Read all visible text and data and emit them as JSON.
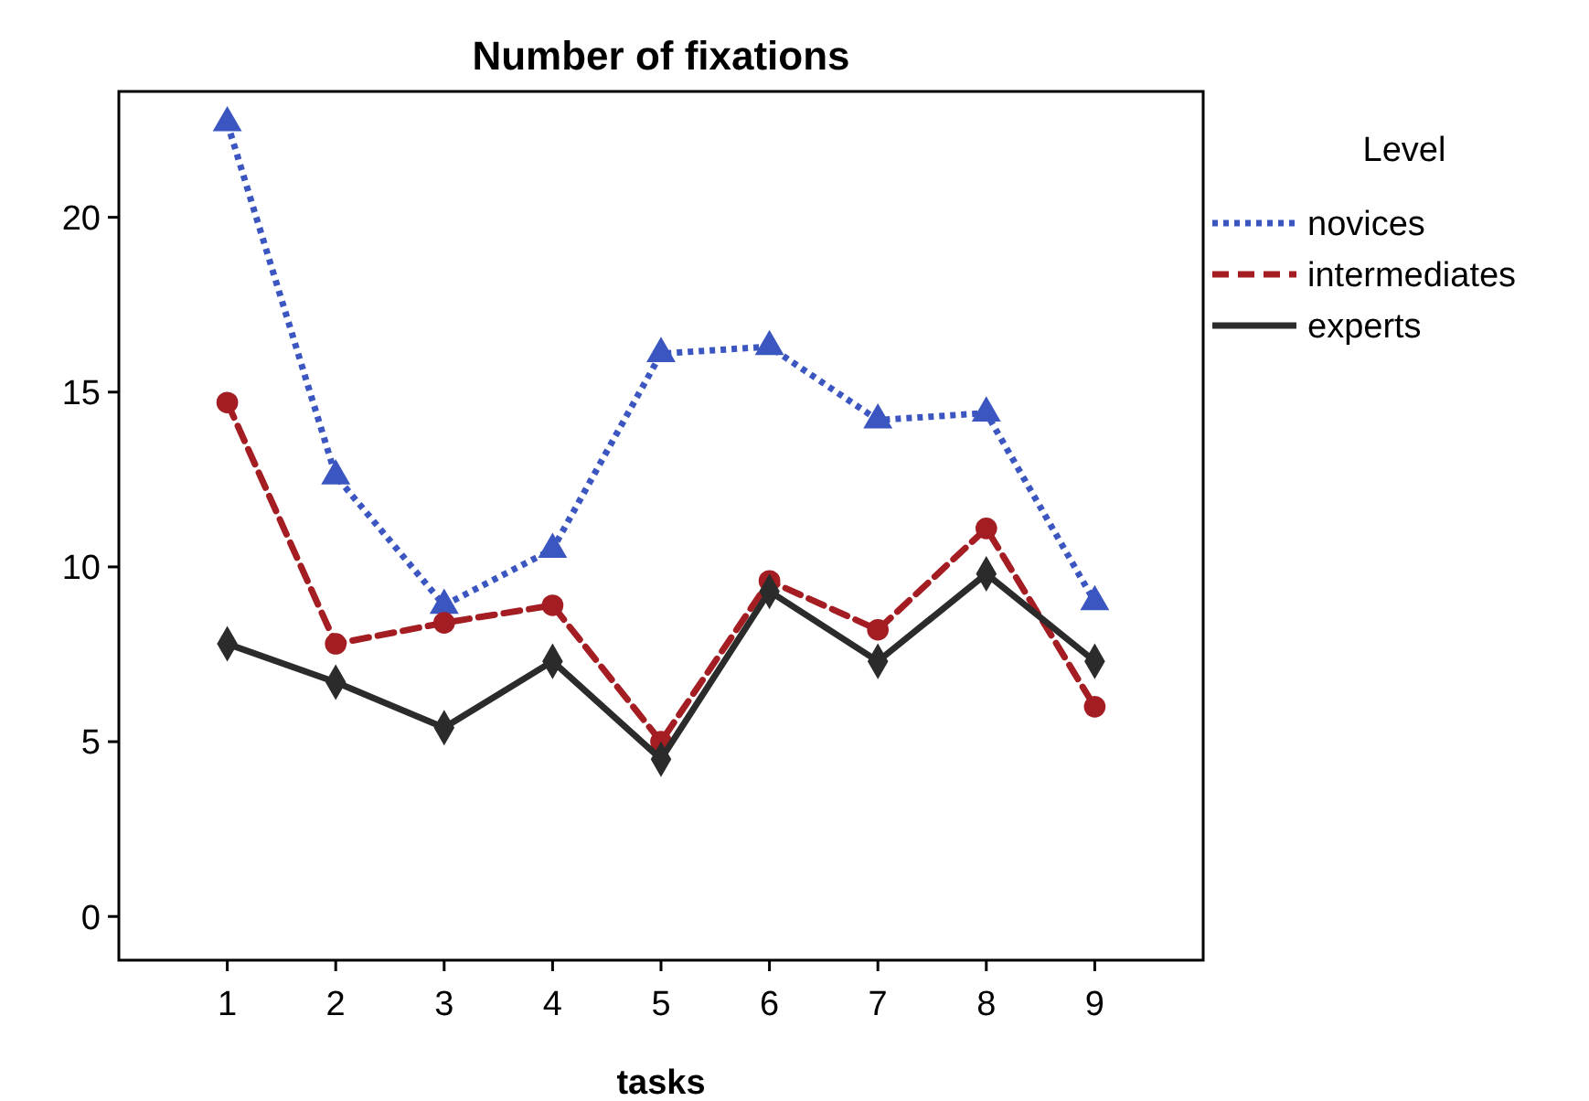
{
  "chart_data": {
    "type": "line",
    "title": "Number of fixations",
    "xlabel": "tasks",
    "legend_title": "Level",
    "x": [
      1,
      2,
      3,
      4,
      5,
      6,
      7,
      8,
      9
    ],
    "xlim": [
      0,
      10
    ],
    "xticks": [
      1,
      2,
      3,
      4,
      5,
      6,
      7,
      8,
      9
    ],
    "ylim": [
      -1.25,
      23.6
    ],
    "yticks": [
      0,
      5,
      10,
      15,
      20
    ],
    "grid": false,
    "legend": "right",
    "series": [
      {
        "name": "novices",
        "color": "#3b56c0",
        "marker": "triangle",
        "line_style": "dotted",
        "values": [
          22.7,
          12.6,
          8.9,
          10.5,
          16.1,
          16.3,
          14.2,
          14.4,
          9.0
        ]
      },
      {
        "name": "intermediates",
        "color": "#a31d22",
        "marker": "circle",
        "line_style": "dashed",
        "values": [
          14.7,
          7.8,
          8.4,
          8.9,
          5.0,
          9.6,
          8.2,
          11.1,
          6.0
        ]
      },
      {
        "name": "experts",
        "color": "#2b2b2b",
        "marker": "diamond",
        "line_style": "solid",
        "values": [
          7.8,
          6.7,
          5.4,
          7.3,
          4.5,
          9.3,
          7.3,
          9.8,
          7.3
        ]
      }
    ]
  }
}
